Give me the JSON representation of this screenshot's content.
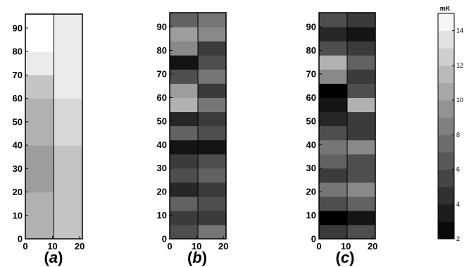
{
  "chart_data": [
    {
      "type": "heatmap",
      "panel_label": "a",
      "x_ticks": [
        0,
        10,
        20
      ],
      "y_ticks": [
        0,
        10,
        20,
        30,
        40,
        50,
        60,
        70,
        80,
        90
      ],
      "xlim": [
        0,
        21
      ],
      "ylim": [
        0,
        96
      ],
      "bands": [
        {
          "y": [
            0,
            10
          ],
          "left": 11,
          "right": 12
        },
        {
          "y": [
            10,
            20
          ],
          "left": 11,
          "right": 12
        },
        {
          "y": [
            20,
            30
          ],
          "left": 10,
          "right": 12
        },
        {
          "y": [
            30,
            40
          ],
          "left": 10,
          "right": 12
        },
        {
          "y": [
            40,
            50
          ],
          "left": 11,
          "right": 13
        },
        {
          "y": [
            50,
            60
          ],
          "left": 11,
          "right": 13
        },
        {
          "y": [
            60,
            70
          ],
          "left": 12,
          "right": 14
        },
        {
          "y": [
            70,
            80
          ],
          "left": 14,
          "right": 14
        },
        {
          "y": [
            80,
            96
          ],
          "left": 15,
          "right": 14
        }
      ]
    },
    {
      "type": "heatmap",
      "panel_label": "b",
      "x_ticks": [
        0,
        10,
        20
      ],
      "y_ticks": [
        0,
        10,
        20,
        30,
        40,
        50,
        60,
        70,
        80,
        90
      ],
      "xlim": [
        0,
        21
      ],
      "ylim": [
        0,
        96
      ],
      "rows": [
        {
          "y": [
            0,
            6
          ],
          "left": 6,
          "right": 8
        },
        {
          "y": [
            6,
            12
          ],
          "left": 5,
          "right": 5
        },
        {
          "y": [
            12,
            18
          ],
          "left": 7,
          "right": 6
        },
        {
          "y": [
            18,
            24
          ],
          "left": 4,
          "right": 5
        },
        {
          "y": [
            24,
            30
          ],
          "left": 6,
          "right": 7
        },
        {
          "y": [
            30,
            36
          ],
          "left": 5,
          "right": 6
        },
        {
          "y": [
            36,
            42
          ],
          "left": 3,
          "right": 3
        },
        {
          "y": [
            42,
            48
          ],
          "left": 7,
          "right": 6
        },
        {
          "y": [
            48,
            54
          ],
          "left": 4,
          "right": 5
        },
        {
          "y": [
            54,
            60
          ],
          "left": 11,
          "right": 8
        },
        {
          "y": [
            60,
            66
          ],
          "left": 10,
          "right": 5
        },
        {
          "y": [
            66,
            72
          ],
          "left": 6,
          "right": 8
        },
        {
          "y": [
            72,
            78
          ],
          "left": 3,
          "right": 6
        },
        {
          "y": [
            78,
            84
          ],
          "left": 9,
          "right": 5
        },
        {
          "y": [
            84,
            90
          ],
          "left": 10,
          "right": 9
        },
        {
          "y": [
            90,
            96
          ],
          "left": 7,
          "right": 8
        }
      ]
    },
    {
      "type": "heatmap",
      "panel_label": "c",
      "x_ticks": [
        0,
        10,
        20
      ],
      "y_ticks": [
        0,
        10,
        20,
        30,
        40,
        50,
        60,
        70,
        80,
        90
      ],
      "xlim": [
        0,
        21
      ],
      "ylim": [
        0,
        96
      ],
      "rows": [
        {
          "y": [
            0,
            6
          ],
          "left": 5,
          "right": 6
        },
        {
          "y": [
            6,
            12
          ],
          "left": 2,
          "right": 3
        },
        {
          "y": [
            12,
            18
          ],
          "left": 6,
          "right": 7
        },
        {
          "y": [
            18,
            24
          ],
          "left": 8,
          "right": 9
        },
        {
          "y": [
            24,
            30
          ],
          "left": 5,
          "right": 6
        },
        {
          "y": [
            30,
            36
          ],
          "left": 7,
          "right": 6
        },
        {
          "y": [
            36,
            42
          ],
          "left": 8,
          "right": 9
        },
        {
          "y": [
            42,
            48
          ],
          "left": 6,
          "right": 5
        },
        {
          "y": [
            48,
            54
          ],
          "left": 4,
          "right": 5
        },
        {
          "y": [
            54,
            60
          ],
          "left": 3,
          "right": 11
        },
        {
          "y": [
            60,
            66
          ],
          "left": 2,
          "right": 6
        },
        {
          "y": [
            66,
            72
          ],
          "left": 9,
          "right": 5
        },
        {
          "y": [
            72,
            78
          ],
          "left": 11,
          "right": 7
        },
        {
          "y": [
            78,
            84
          ],
          "left": 6,
          "right": 5
        },
        {
          "y": [
            84,
            90
          ],
          "left": 4,
          "right": 3
        },
        {
          "y": [
            90,
            96
          ],
          "left": 6,
          "right": 5
        }
      ]
    }
  ],
  "colorbar": {
    "unit": "mK",
    "range": [
      2,
      15
    ],
    "ticks": [
      2,
      4,
      6,
      8,
      10,
      12,
      14
    ],
    "levels": 13,
    "color_low": "#000000",
    "color_high": "#ffffff"
  }
}
